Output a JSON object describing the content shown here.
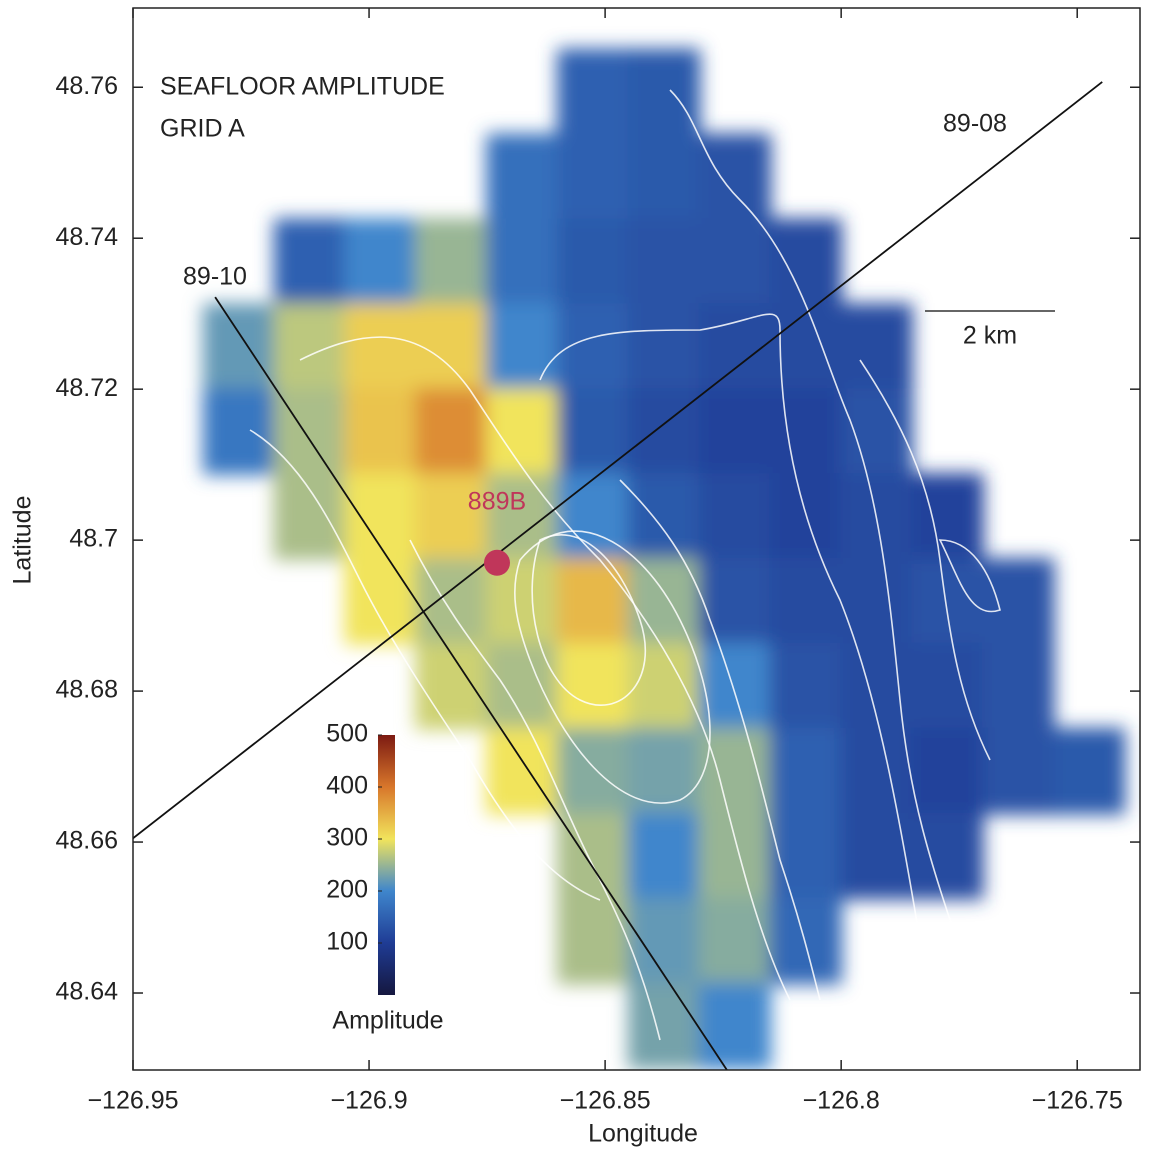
{
  "chart_data": {
    "type": "heatmap",
    "title": [
      "SEAFLOOR AMPLITUDE",
      "GRID A"
    ],
    "x_label": "Longitude",
    "y_label": "Latitude",
    "xlim": [
      -126.95,
      -126.7367
    ],
    "ylim": [
      48.6298,
      48.7705
    ],
    "xticks": [
      {
        "value": -126.95,
        "label": "−126.95"
      },
      {
        "value": -126.9,
        "label": "−126.9"
      },
      {
        "value": -126.85,
        "label": "−126.85"
      },
      {
        "value": -126.8,
        "label": "−126.8"
      },
      {
        "value": -126.75,
        "label": "−126.75"
      }
    ],
    "yticks": [
      48.64,
      48.66,
      48.68,
      48.7,
      48.72,
      48.74,
      48.76
    ],
    "grid": {
      "x_edges": [
        -126.935,
        -126.92,
        -126.905,
        -126.89,
        -126.875,
        -126.86,
        -126.845,
        -126.83,
        -126.815,
        -126.8,
        -126.785,
        -126.77,
        -126.755,
        -126.74
      ],
      "y_edges": [
        48.765,
        48.75375,
        48.7425,
        48.73125,
        48.72,
        48.70875,
        48.6975,
        48.68625,
        48.675,
        48.66375,
        48.6525,
        48.64125,
        48.63
      ],
      "values": [
        [
          null,
          null,
          null,
          null,
          null,
          150,
          140,
          null,
          null,
          null,
          null,
          null,
          null
        ],
        [
          null,
          null,
          null,
          null,
          170,
          150,
          140,
          130,
          null,
          null,
          null,
          null,
          null
        ],
        [
          null,
          150,
          200,
          250,
          170,
          140,
          130,
          130,
          120,
          null,
          null,
          null,
          null
        ],
        [
          220,
          270,
          320,
          320,
          200,
          150,
          130,
          120,
          120,
          120,
          null,
          null,
          null
        ],
        [
          180,
          260,
          330,
          380,
          300,
          140,
          120,
          110,
          110,
          130,
          null,
          null,
          null
        ],
        [
          null,
          260,
          300,
          320,
          260,
          200,
          140,
          120,
          110,
          120,
          110,
          null,
          null
        ],
        [
          null,
          null,
          300,
          260,
          280,
          340,
          250,
          130,
          120,
          120,
          130,
          130,
          null
        ],
        [
          null,
          null,
          null,
          280,
          260,
          300,
          280,
          200,
          130,
          120,
          120,
          130,
          null
        ],
        [
          null,
          null,
          null,
          null,
          300,
          240,
          230,
          250,
          150,
          120,
          110,
          130,
          140
        ],
        [
          null,
          null,
          null,
          null,
          null,
          260,
          200,
          250,
          150,
          120,
          120,
          null,
          null
        ],
        [
          null,
          null,
          null,
          null,
          null,
          260,
          220,
          240,
          160,
          null,
          null,
          null,
          null
        ],
        [
          null,
          null,
          null,
          null,
          null,
          null,
          230,
          200,
          null,
          null,
          null,
          null,
          null
        ]
      ]
    },
    "colormap": [
      "#15173f",
      "#1f3c95",
      "#3f86cc",
      "#f1e45c",
      "#d8772b",
      "#7c1a12"
    ],
    "colorbar": {
      "label": "Amplitude",
      "lim": [
        0,
        500
      ],
      "ticks": [
        100,
        200,
        300,
        400,
        500
      ]
    },
    "lines": [
      {
        "name": "89-10",
        "x": [
          -126.9326,
          -126.8242
        ],
        "y": [
          48.7322,
          48.6298
        ]
      },
      {
        "name": "89-08",
        "x": [
          -126.95,
          -126.7447
        ],
        "y": [
          48.6605,
          48.7607
        ]
      }
    ],
    "station": {
      "name": "889B",
      "x": -126.8729,
      "y": 48.697,
      "color": "#c0365a"
    },
    "scale_bar": "2 km"
  }
}
